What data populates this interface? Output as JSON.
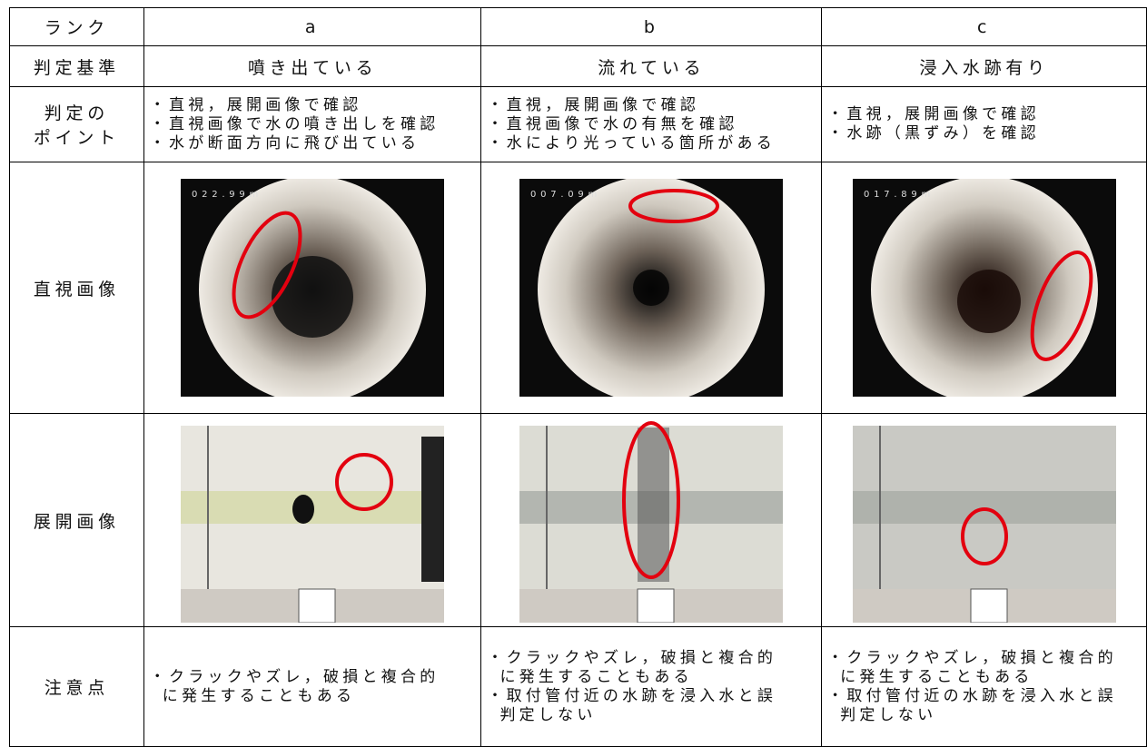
{
  "table": {
    "header": [
      "ランク",
      "a",
      "b",
      "c"
    ],
    "criteria": {
      "label": "判定基準",
      "cells": [
        "噴き出ている",
        "流れている",
        "浸入水跡有り"
      ]
    },
    "points": {
      "label": [
        "判定の",
        "ポイント"
      ],
      "cells": [
        [
          "・直視，展開画像で確認",
          "・直視画像で水の噴き出しを確認",
          "・水が断面方向に飛び出ている"
        ],
        [
          "・直視，展開画像で確認",
          "・直視画像で水の有無を確認",
          "・水により光っている箇所がある"
        ],
        [
          "・直視，展開画像で確認",
          "・水跡（黒ずみ）を確認"
        ]
      ]
    },
    "direct": {
      "label": "直視画像",
      "captions": [
        "022.99m",
        "007.09m",
        "017.89m"
      ]
    },
    "expanded": {
      "label": "展開画像"
    },
    "notes": {
      "label": "注意点",
      "cells": [
        [
          "・クラックやズレ，破損と複合的",
          "に発生することもある"
        ],
        [
          "・クラックやズレ，破損と複合的",
          "に発生することもある",
          "・取付管付近の水跡を浸入水と誤",
          "判定しない"
        ],
        [
          "・クラックやズレ，破損と複合的",
          "に発生することもある",
          "・取付管付近の水跡を浸入水と誤",
          "判定しない"
        ]
      ]
    }
  }
}
